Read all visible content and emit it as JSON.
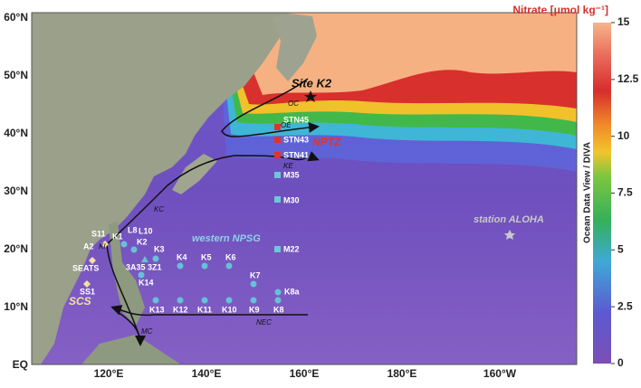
{
  "title": "Nitrate [μmol kg⁻¹]",
  "lat_labels": [
    "60°N",
    "50°N",
    "40°N",
    "30°N",
    "20°N",
    "10°N",
    "EQ"
  ],
  "lon_labels": [
    "120°E",
    "140°E",
    "160°E",
    "180°E",
    "160°W"
  ],
  "colorbar": {
    "label": "Ocean Data View / DIVA",
    "lim": [
      0,
      15
    ],
    "ticks": [
      0,
      2.5,
      5,
      7.5,
      10,
      12.5,
      15
    ]
  },
  "labels": [
    "Site K2",
    "OC",
    "OE",
    "STN45",
    "STN43",
    "NPTZ",
    "STN41",
    "KE",
    "M35",
    "M30",
    "KC",
    "western NPSG",
    "station ALOHA",
    "S11",
    "K1",
    "L8",
    "L10",
    "K2",
    "A2",
    "KI",
    "K3",
    "SEATS",
    "3A35",
    "3Z1",
    "K4",
    "K5",
    "K6",
    "M22",
    "K14",
    "K7",
    "SS1",
    "K8a",
    "SCS",
    "K13",
    "K12",
    "K11",
    "K10",
    "K9",
    "K8",
    "NEC",
    "MC"
  ]
}
